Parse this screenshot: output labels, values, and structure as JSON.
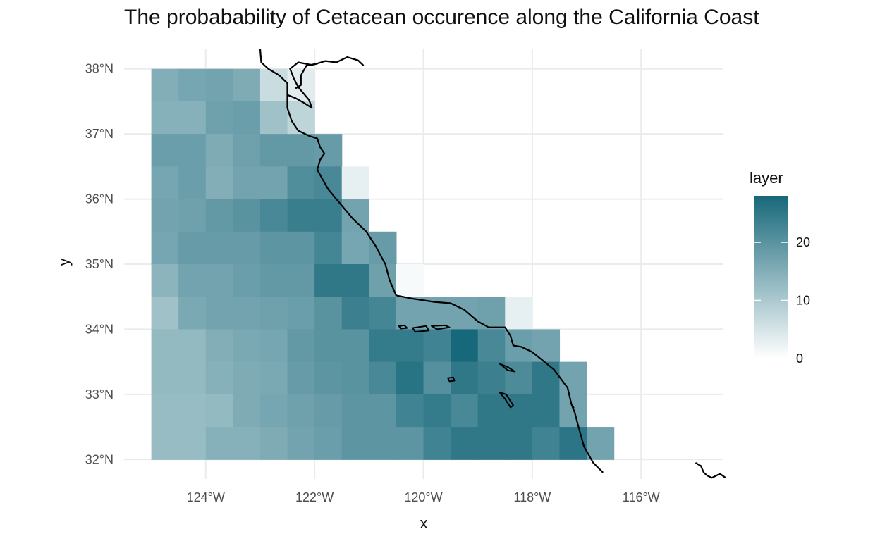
{
  "title": "The probabability of Cetacean occurence along the California Coast",
  "axes": {
    "xlabel": "x",
    "ylabel": "y",
    "x_ticks": [
      "124°W",
      "122°W",
      "120°W",
      "118°W",
      "116°W"
    ],
    "y_ticks": [
      "38°N",
      "37°N",
      "36°N",
      "35°N",
      "34°N",
      "33°N",
      "32°N"
    ]
  },
  "legend": {
    "title": "layer",
    "ticks": [
      "0",
      "10",
      "20"
    ],
    "low_color": "#ffffff",
    "high_color": "#17687a"
  },
  "chart_data": {
    "type": "heatmap",
    "title": "The probabability of Cetacean occurence along the California Coast",
    "xlabel": "x",
    "ylabel": "y",
    "xlim": [
      -125.5,
      -114.5
    ],
    "ylim": [
      31.7,
      38.3
    ],
    "x_tick_values": [
      -124,
      -122,
      -120,
      -118,
      -116
    ],
    "y_tick_values": [
      38,
      37,
      36,
      35,
      34,
      33,
      32
    ],
    "value_range": [
      0,
      28
    ],
    "colorscale": "white to teal",
    "grid": true,
    "legend_position": "right",
    "cell_size_deg": 0.5,
    "cells": [
      [
        -125.0,
        37.5,
        15
      ],
      [
        -124.5,
        37.5,
        16.5
      ],
      [
        -124.0,
        37.5,
        17
      ],
      [
        -123.5,
        37.5,
        15.5
      ],
      [
        -123.0,
        37.5,
        6.5
      ],
      [
        -122.5,
        37.5,
        3.5
      ],
      [
        -125.0,
        37.0,
        14.5
      ],
      [
        -124.5,
        37.0,
        14.5
      ],
      [
        -124.0,
        37.0,
        17.5
      ],
      [
        -123.5,
        37.0,
        18
      ],
      [
        -123.0,
        37.0,
        11.5
      ],
      [
        -122.5,
        37.0,
        8
      ],
      [
        -125.0,
        36.5,
        18
      ],
      [
        -124.5,
        36.5,
        18
      ],
      [
        -124.0,
        36.5,
        15.5
      ],
      [
        -123.5,
        36.5,
        17.5
      ],
      [
        -123.0,
        36.5,
        19
      ],
      [
        -122.5,
        36.5,
        19
      ],
      [
        -122.0,
        36.5,
        18.5
      ],
      [
        -125.0,
        36.0,
        16.5
      ],
      [
        -124.5,
        36.0,
        18
      ],
      [
        -124.0,
        36.0,
        15
      ],
      [
        -123.5,
        36.0,
        17
      ],
      [
        -123.0,
        36.0,
        17
      ],
      [
        -122.5,
        36.0,
        21
      ],
      [
        -122.0,
        36.0,
        22
      ],
      [
        -121.5,
        36.0,
        3
      ],
      [
        -125.0,
        35.5,
        17
      ],
      [
        -124.5,
        35.5,
        17.5
      ],
      [
        -124.0,
        35.5,
        19
      ],
      [
        -123.5,
        35.5,
        20
      ],
      [
        -123.0,
        35.5,
        22
      ],
      [
        -122.5,
        35.5,
        24
      ],
      [
        -122.0,
        35.5,
        24
      ],
      [
        -121.5,
        35.5,
        17
      ],
      [
        -125.0,
        35.0,
        16.5
      ],
      [
        -124.5,
        35.0,
        18.5
      ],
      [
        -124.0,
        35.0,
        18.5
      ],
      [
        -123.5,
        35.0,
        18.5
      ],
      [
        -123.0,
        35.0,
        19.5
      ],
      [
        -122.5,
        35.0,
        19.5
      ],
      [
        -122.0,
        35.0,
        22.5
      ],
      [
        -121.5,
        35.0,
        16.5
      ],
      [
        -121.0,
        35.0,
        18.5
      ],
      [
        -125.0,
        34.5,
        14
      ],
      [
        -124.5,
        34.5,
        17
      ],
      [
        -124.0,
        34.5,
        17
      ],
      [
        -123.5,
        34.5,
        18
      ],
      [
        -123.0,
        34.5,
        19
      ],
      [
        -122.5,
        34.5,
        19
      ],
      [
        -122.0,
        34.5,
        25
      ],
      [
        -121.5,
        34.5,
        25
      ],
      [
        -121.0,
        34.5,
        17.5
      ],
      [
        -120.5,
        34.5,
        1
      ],
      [
        -125.0,
        34.0,
        11.5
      ],
      [
        -124.5,
        34.0,
        16
      ],
      [
        -124.0,
        34.0,
        17
      ],
      [
        -123.5,
        34.0,
        17
      ],
      [
        -123.0,
        34.0,
        17.5
      ],
      [
        -122.5,
        34.0,
        18
      ],
      [
        -122.0,
        34.0,
        20
      ],
      [
        -121.5,
        34.0,
        23.5
      ],
      [
        -121.0,
        34.0,
        22.5
      ],
      [
        -120.5,
        34.0,
        17
      ],
      [
        -120.0,
        34.0,
        17
      ],
      [
        -119.5,
        34.0,
        17
      ],
      [
        -119.0,
        34.0,
        17.5
      ],
      [
        -118.5,
        34.0,
        3
      ],
      [
        -125.0,
        33.5,
        13
      ],
      [
        -124.5,
        33.5,
        13
      ],
      [
        -124.0,
        33.5,
        15
      ],
      [
        -123.5,
        33.5,
        16
      ],
      [
        -123.0,
        33.5,
        16.5
      ],
      [
        -122.5,
        33.5,
        19
      ],
      [
        -122.0,
        33.5,
        20
      ],
      [
        -121.5,
        33.5,
        20
      ],
      [
        -121.0,
        33.5,
        24.5
      ],
      [
        -120.5,
        33.5,
        24.5
      ],
      [
        -120.0,
        33.5,
        23
      ],
      [
        -119.5,
        33.5,
        28
      ],
      [
        -119.0,
        33.5,
        22
      ],
      [
        -118.5,
        33.5,
        18
      ],
      [
        -118.0,
        33.5,
        17
      ],
      [
        -125.0,
        33.0,
        13
      ],
      [
        -124.5,
        33.0,
        13
      ],
      [
        -124.0,
        33.0,
        14.5
      ],
      [
        -123.5,
        33.0,
        15.5
      ],
      [
        -123.0,
        33.0,
        16
      ],
      [
        -122.5,
        33.0,
        18.5
      ],
      [
        -122.0,
        33.0,
        19.5
      ],
      [
        -121.5,
        33.0,
        20
      ],
      [
        -121.0,
        33.0,
        22
      ],
      [
        -120.5,
        33.0,
        26
      ],
      [
        -120.0,
        33.0,
        20.5
      ],
      [
        -119.5,
        33.0,
        25
      ],
      [
        -119.0,
        33.0,
        23.5
      ],
      [
        -118.5,
        33.0,
        21.5
      ],
      [
        -118.0,
        33.0,
        25
      ],
      [
        -117.5,
        33.0,
        17
      ],
      [
        -125.0,
        32.5,
        12.5
      ],
      [
        -124.5,
        32.5,
        12.5
      ],
      [
        -124.0,
        32.5,
        13
      ],
      [
        -123.5,
        32.5,
        15.5
      ],
      [
        -123.0,
        32.5,
        16.5
      ],
      [
        -122.5,
        32.5,
        17.5
      ],
      [
        -122.0,
        32.5,
        18.5
      ],
      [
        -121.5,
        32.5,
        19.5
      ],
      [
        -121.0,
        32.5,
        19.5
      ],
      [
        -120.5,
        32.5,
        23
      ],
      [
        -120.0,
        32.5,
        24.5
      ],
      [
        -119.5,
        32.5,
        22
      ],
      [
        -119.0,
        32.5,
        25
      ],
      [
        -118.5,
        32.5,
        25
      ],
      [
        -118.0,
        32.5,
        25
      ],
      [
        -117.5,
        32.5,
        17
      ],
      [
        -125.0,
        32.0,
        12.5
      ],
      [
        -124.5,
        32.0,
        12.5
      ],
      [
        -124.0,
        32.0,
        14.5
      ],
      [
        -123.5,
        32.0,
        14.5
      ],
      [
        -123.0,
        32.0,
        15.5
      ],
      [
        -122.5,
        32.0,
        17
      ],
      [
        -122.0,
        32.0,
        18
      ],
      [
        -121.5,
        32.0,
        19.5
      ],
      [
        -121.0,
        32.0,
        19.5
      ],
      [
        -120.5,
        32.0,
        19.5
      ],
      [
        -120.0,
        32.0,
        23
      ],
      [
        -119.5,
        32.0,
        25
      ],
      [
        -119.0,
        32.0,
        25
      ],
      [
        -118.5,
        32.0,
        25
      ],
      [
        -118.0,
        32.0,
        23
      ],
      [
        -117.5,
        32.0,
        25.5
      ],
      [
        -117.0,
        32.0,
        17
      ]
    ],
    "coastline": [
      [
        -123.0,
        38.3
      ],
      [
        -122.98,
        38.1
      ],
      [
        -122.85,
        38.0
      ],
      [
        -122.65,
        37.9
      ],
      [
        -122.5,
        37.78
      ],
      [
        -122.5,
        37.6
      ],
      [
        -122.5,
        37.4
      ],
      [
        -122.42,
        37.2
      ],
      [
        -122.3,
        37.05
      ],
      [
        -122.1,
        36.97
      ],
      [
        -121.95,
        36.93
      ],
      [
        -121.9,
        36.8
      ],
      [
        -121.82,
        36.7
      ],
      [
        -121.9,
        36.6
      ],
      [
        -121.95,
        36.45
      ],
      [
        -121.75,
        36.15
      ],
      [
        -121.5,
        35.9
      ],
      [
        -121.3,
        35.7
      ],
      [
        -121.05,
        35.5
      ],
      [
        -120.88,
        35.28
      ],
      [
        -120.7,
        35.0
      ],
      [
        -120.62,
        34.75
      ],
      [
        -120.5,
        34.52
      ],
      [
        -120.2,
        34.47
      ],
      [
        -119.8,
        34.42
      ],
      [
        -119.5,
        34.4
      ],
      [
        -119.25,
        34.3
      ],
      [
        -119.0,
        34.12
      ],
      [
        -118.8,
        34.03
      ],
      [
        -118.5,
        34.03
      ],
      [
        -118.4,
        33.9
      ],
      [
        -118.35,
        33.75
      ],
      [
        -118.2,
        33.73
      ],
      [
        -118.0,
        33.65
      ],
      [
        -117.85,
        33.55
      ],
      [
        -117.6,
        33.38
      ],
      [
        -117.35,
        33.1
      ],
      [
        -117.28,
        32.85
      ],
      [
        -117.22,
        32.72
      ],
      [
        -117.15,
        32.5
      ],
      [
        -117.05,
        32.2
      ],
      [
        -116.88,
        31.95
      ],
      [
        -116.7,
        31.8
      ]
    ],
    "bay": [
      [
        -122.5,
        37.6
      ],
      [
        -122.35,
        37.55
      ],
      [
        -122.2,
        37.48
      ],
      [
        -122.05,
        37.4
      ],
      [
        -122.1,
        37.52
      ],
      [
        -122.3,
        37.72
      ],
      [
        -122.38,
        37.85
      ],
      [
        -122.45,
        38.0
      ],
      [
        -122.3,
        38.1
      ],
      [
        -122.05,
        38.06
      ],
      [
        -121.95,
        38.08
      ],
      [
        -122.15,
        38.05
      ],
      [
        -122.25,
        37.9
      ],
      [
        -122.25,
        37.75
      ],
      [
        -122.35,
        37.7
      ]
    ],
    "delta": [
      [
        -122.0,
        38.07
      ],
      [
        -121.8,
        38.12
      ],
      [
        -121.6,
        38.1
      ],
      [
        -121.4,
        38.18
      ],
      [
        -121.2,
        38.13
      ],
      [
        -121.1,
        38.05
      ]
    ],
    "islands": [
      [
        [
          -120.45,
          34.05
        ],
        [
          -120.35,
          34.06
        ],
        [
          -120.3,
          34.02
        ],
        [
          -120.42,
          34.01
        ]
      ],
      [
        [
          -120.2,
          34.02
        ],
        [
          -119.95,
          34.05
        ],
        [
          -119.9,
          33.98
        ],
        [
          -120.15,
          33.96
        ]
      ],
      [
        [
          -119.85,
          34.05
        ],
        [
          -119.6,
          34.06
        ],
        [
          -119.52,
          34.03
        ],
        [
          -119.75,
          34.0
        ]
      ],
      [
        [
          -118.6,
          33.47
        ],
        [
          -118.45,
          33.42
        ],
        [
          -118.32,
          33.35
        ],
        [
          -118.45,
          33.37
        ]
      ],
      [
        [
          -119.55,
          33.25
        ],
        [
          -119.45,
          33.26
        ],
        [
          -119.43,
          33.21
        ],
        [
          -119.52,
          33.2
        ]
      ],
      [
        [
          -118.6,
          33.03
        ],
        [
          -118.5,
          32.93
        ],
        [
          -118.4,
          32.8
        ],
        [
          -118.35,
          32.83
        ],
        [
          -118.48,
          33.0
        ]
      ],
      [
        [
          -117.26,
          32.82
        ],
        [
          -117.24,
          32.8
        ],
        [
          -117.25,
          32.78
        ]
      ]
    ],
    "mexico_coast": [
      [
        -115.0,
        31.95
      ],
      [
        -114.9,
        31.9
      ],
      [
        -114.85,
        31.8
      ],
      [
        -114.78,
        31.75
      ],
      [
        -114.7,
        31.72
      ],
      [
        -114.55,
        31.78
      ],
      [
        -114.45,
        31.72
      ]
    ]
  }
}
